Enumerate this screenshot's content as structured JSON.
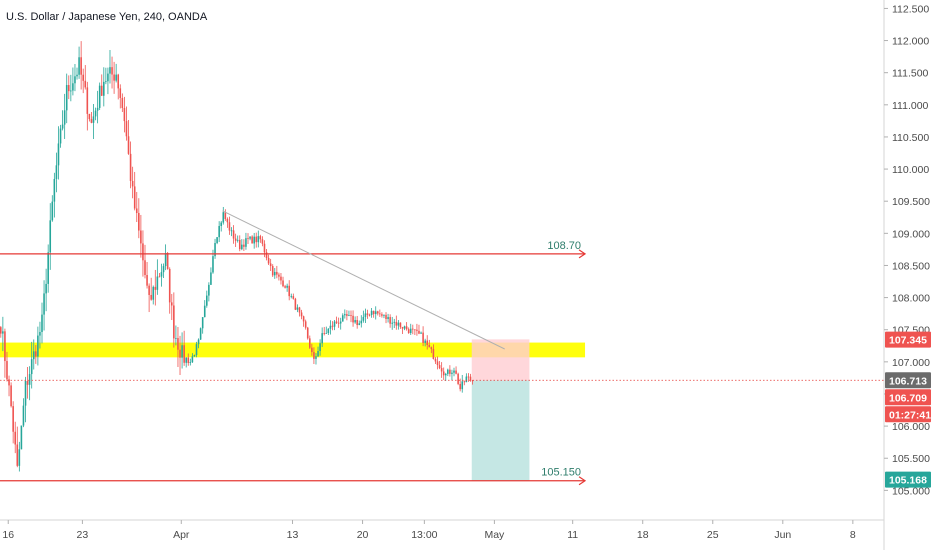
{
  "chart_data": {
    "type": "candlestick",
    "title": "U.S. Dollar / Japanese Yen, 240, OANDA",
    "ylim": [
      104.85,
      112.6
    ],
    "y_ticks": [
      "105.000",
      "105.500",
      "106.000",
      "106.500",
      "107.000",
      "107.500",
      "108.000",
      "108.500",
      "109.000",
      "109.500",
      "110.000",
      "110.500",
      "111.000",
      "111.500",
      "112.000",
      "112.500"
    ],
    "x_ticks": [
      {
        "label": "16",
        "bar": 4
      },
      {
        "label": "23",
        "bar": 40
      },
      {
        "label": "Apr",
        "bar": 88
      },
      {
        "label": "13",
        "bar": 142
      },
      {
        "label": "20",
        "bar": 176
      },
      {
        "label": "13:00",
        "bar": 206
      },
      {
        "label": "May",
        "bar": 240
      },
      {
        "label": "11",
        "bar": 278
      },
      {
        "label": "18",
        "bar": 312
      },
      {
        "label": "25",
        "bar": 346
      },
      {
        "label": "Jun",
        "bar": 380
      },
      {
        "label": "8",
        "bar": 414
      }
    ],
    "keypoints": [
      [
        0,
        107.6
      ],
      [
        5,
        106.3
      ],
      [
        8,
        105.3
      ],
      [
        12,
        106.6
      ],
      [
        20,
        107.6
      ],
      [
        26,
        109.8
      ],
      [
        32,
        111.2
      ],
      [
        38,
        111.6
      ],
      [
        44,
        110.7
      ],
      [
        50,
        111.4
      ],
      [
        56,
        111.5
      ],
      [
        60,
        110.8
      ],
      [
        64,
        109.6
      ],
      [
        68,
        108.8
      ],
      [
        72,
        107.9
      ],
      [
        76,
        108.3
      ],
      [
        80,
        108.6
      ],
      [
        84,
        107.5
      ],
      [
        88,
        107.1
      ],
      [
        92,
        107.0
      ],
      [
        96,
        107.3
      ],
      [
        100,
        108.0
      ],
      [
        104,
        108.9
      ],
      [
        108,
        109.3
      ],
      [
        112,
        109.0
      ],
      [
        116,
        108.8
      ],
      [
        120,
        108.9
      ],
      [
        126,
        108.9
      ],
      [
        132,
        108.4
      ],
      [
        138,
        108.2
      ],
      [
        144,
        107.8
      ],
      [
        148,
        107.5
      ],
      [
        152,
        107.0
      ],
      [
        156,
        107.4
      ],
      [
        162,
        107.6
      ],
      [
        168,
        107.7
      ],
      [
        174,
        107.6
      ],
      [
        180,
        107.8
      ],
      [
        186,
        107.7
      ],
      [
        192,
        107.6
      ],
      [
        198,
        107.5
      ],
      [
        204,
        107.4
      ],
      [
        208,
        107.2
      ],
      [
        212,
        107.0
      ],
      [
        216,
        106.8
      ],
      [
        220,
        106.9
      ],
      [
        223,
        106.58
      ],
      [
        226,
        106.75
      ],
      [
        229,
        106.71
      ]
    ],
    "trendline": [
      [
        108,
        109.35
      ],
      [
        245,
        107.2
      ]
    ],
    "levels": [
      {
        "label": "108.70",
        "value": 108.68
      },
      {
        "label": "105.150",
        "value": 105.15
      }
    ],
    "support_zone": {
      "low": 107.07,
      "high": 107.3
    },
    "position": {
      "entry": 106.71,
      "stop": 107.35,
      "target": 105.15,
      "start_bar": 229,
      "end_bar": 257
    },
    "current_price": 106.713,
    "price_tags": [
      {
        "label": "107.345",
        "value": 107.345,
        "color": "#ef5350"
      },
      {
        "label": "106.713",
        "value": 106.713,
        "color": "#6b6b6b"
      },
      {
        "label": "106.709",
        "value": 106.709,
        "color": "#ef5350"
      },
      {
        "label": "01:27:41",
        "value": 106.709,
        "color": "#ef5350"
      },
      {
        "label": "105.168",
        "value": 105.168,
        "color": "#26a69a"
      }
    ],
    "colors": {
      "up": "#26a69a",
      "down": "#ef5350",
      "zone": "#ffff00",
      "level": "#e53935",
      "trend": "#b0b0b0",
      "profit": "#b2dfdb",
      "loss": "#ffcdd2",
      "price_line": "#e53935"
    }
  }
}
